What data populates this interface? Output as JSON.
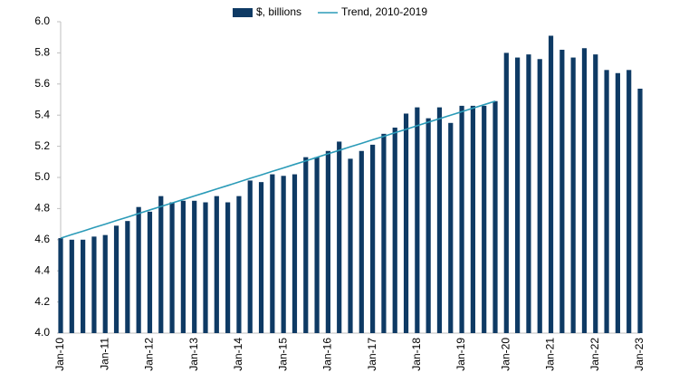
{
  "chart_data": {
    "type": "bar",
    "categories": [
      "Jan-10",
      null,
      null,
      null,
      "Jan-11",
      null,
      null,
      null,
      "Jan-12",
      null,
      null,
      null,
      "Jan-13",
      null,
      null,
      null,
      "Jan-14",
      null,
      null,
      null,
      "Jan-15",
      null,
      null,
      null,
      "Jan-16",
      null,
      null,
      null,
      "Jan-17",
      null,
      null,
      null,
      "Jan-18",
      null,
      null,
      null,
      "Jan-19",
      null,
      null,
      null,
      "Jan-20",
      null,
      null,
      null,
      "Jan-21",
      null,
      null,
      null,
      "Jan-22",
      null,
      null,
      null,
      "Jan-23"
    ],
    "series": [
      {
        "name": "$, billions",
        "type": "bar",
        "color": "#0e3a64",
        "values": [
          4.61,
          4.6,
          4.6,
          4.62,
          4.63,
          4.69,
          4.72,
          4.81,
          4.78,
          4.88,
          4.84,
          4.85,
          4.85,
          4.84,
          4.88,
          4.84,
          4.88,
          4.98,
          4.97,
          5.02,
          5.01,
          5.02,
          5.13,
          5.13,
          5.17,
          5.23,
          5.12,
          5.17,
          5.21,
          5.28,
          5.32,
          5.41,
          5.45,
          5.38,
          5.45,
          5.35,
          5.46,
          5.46,
          5.46,
          5.49,
          5.8,
          5.77,
          5.79,
          5.76,
          5.91,
          5.82,
          5.77,
          5.83,
          5.79,
          5.69,
          5.67,
          5.69,
          5.57
        ]
      },
      {
        "name": "Trend, 2010-2019",
        "type": "line",
        "color": "#2b9bb8",
        "values": [
          4.61,
          4.633,
          4.655,
          4.678,
          4.7,
          4.723,
          4.745,
          4.768,
          4.791,
          4.813,
          4.836,
          4.858,
          4.881,
          4.903,
          4.926,
          4.948,
          4.971,
          4.994,
          5.016,
          5.039,
          5.061,
          5.084,
          5.106,
          5.129,
          5.152,
          5.174,
          5.197,
          5.219,
          5.242,
          5.264,
          5.287,
          5.309,
          5.332,
          5.355,
          5.377,
          5.4,
          5.422,
          5.445,
          5.467,
          5.49,
          null,
          null,
          null,
          null,
          null,
          null,
          null,
          null,
          null,
          null,
          null,
          null,
          null
        ]
      }
    ],
    "ylim": [
      4.0,
      6.0
    ],
    "yticks": [
      {
        "value": 4.0,
        "label": "4.0"
      },
      {
        "value": 4.2,
        "label": "4.2"
      },
      {
        "value": 4.4,
        "label": "4.4"
      },
      {
        "value": 4.6,
        "label": "4.6"
      },
      {
        "value": 4.8,
        "label": "4.8"
      },
      {
        "value": 5.0,
        "label": "5.0"
      },
      {
        "value": 5.2,
        "label": "5.2"
      },
      {
        "value": 5.4,
        "label": "5.4"
      },
      {
        "value": 5.6,
        "label": "5.6"
      },
      {
        "value": 5.8,
        "label": "5.8"
      },
      {
        "value": 6.0,
        "label": "6.0"
      }
    ],
    "grid": false,
    "legend": "top"
  }
}
